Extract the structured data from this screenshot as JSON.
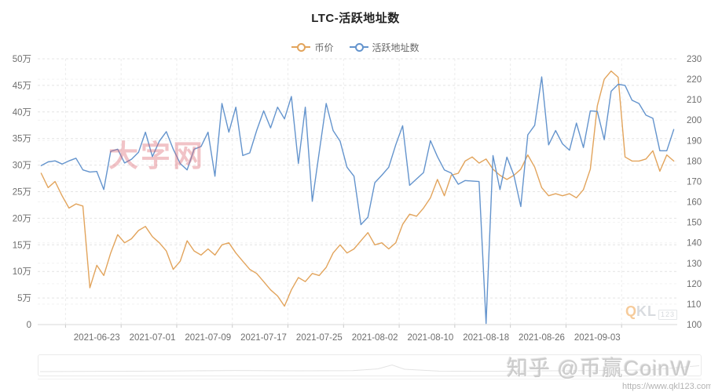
{
  "title": "LTC-活跃地址数",
  "legend": {
    "items": [
      {
        "label": "币价",
        "color": "#e2a45c"
      },
      {
        "label": "活跃地址数",
        "color": "#6494cd"
      }
    ]
  },
  "watermarks": {
    "center_text": "大字网",
    "logo_q": "Q",
    "logo_kl": "KL",
    "logo_num": "123",
    "bottom_text": "知乎 @币赢CoinW"
  },
  "source_url": "https://www.qkl123.com",
  "colors": {
    "price_line": "#e2a45c",
    "active_line": "#6494cd",
    "grid_major": "#e4e4e4",
    "grid_minor": "#f2f2f2",
    "grid_vertical": "#ececec",
    "axis_line": "#d8d8d8",
    "axis_text": "#6e6e6e"
  },
  "chart_data": {
    "type": "line",
    "title": "LTC-活跃地址数",
    "x_start": "2021-06-15",
    "x_interval": "daily",
    "x_labels": [
      "2021-06-23",
      "2021-07-01",
      "2021-07-09",
      "2021-07-17",
      "2021-07-25",
      "2021-08-02",
      "2021-08-10",
      "2021-08-18",
      "2021-08-26",
      "2021-09-03"
    ],
    "x_label_first_index": 8,
    "x_label_step": 8,
    "grid": "dashed",
    "legend_position": "top",
    "left_axis": {
      "min": 0,
      "max": 500000,
      "ticks": [
        "50万",
        "45万",
        "40万",
        "35万",
        "30万",
        "25万",
        "20万",
        "15万",
        "10万",
        "5万",
        "0"
      ]
    },
    "right_axis": {
      "min": 100,
      "max": 230,
      "ticks": [
        "230",
        "220",
        "210",
        "200",
        "190",
        "180",
        "170",
        "160",
        "150",
        "140",
        "130",
        "120",
        "110",
        "100"
      ]
    },
    "series": [
      {
        "name": "币价",
        "axis": "right",
        "color": "#e2a45c",
        "values": [
          174,
          167,
          170,
          163,
          157,
          159,
          158,
          118,
          129,
          124,
          135,
          144,
          140,
          142,
          146,
          148,
          143,
          140,
          136,
          127,
          131,
          141,
          136,
          134,
          137,
          134,
          139,
          140,
          135,
          131,
          127,
          125,
          121,
          117,
          114,
          109,
          117,
          123,
          121,
          125,
          124,
          128,
          135,
          139,
          135,
          137,
          141,
          145,
          139,
          140,
          137,
          140,
          149,
          154,
          153,
          157,
          162,
          171,
          163,
          173,
          174,
          180,
          182,
          179,
          181,
          176,
          173,
          171,
          173,
          176,
          183,
          177,
          167,
          163,
          164,
          163,
          164,
          162,
          166,
          176,
          207,
          220,
          224,
          221,
          182,
          180,
          180,
          181,
          185,
          175,
          183,
          180
        ]
      },
      {
        "name": "活跃地址数",
        "axis": "left",
        "color": "#6494cd",
        "values": [
          299000,
          306000,
          308000,
          302000,
          308000,
          313000,
          291000,
          287000,
          288000,
          254000,
          326000,
          330000,
          304000,
          311000,
          324000,
          362000,
          316000,
          345000,
          363000,
          330000,
          303000,
          291000,
          330000,
          335000,
          362000,
          279000,
          416000,
          362000,
          409000,
          318000,
          323000,
          365000,
          402000,
          370000,
          409000,
          387000,
          429000,
          303000,
          409000,
          232000,
          324000,
          416000,
          365000,
          345000,
          296000,
          279000,
          188000,
          202000,
          267000,
          281000,
          296000,
          338000,
          374000,
          262000,
          274000,
          286000,
          346000,
          316000,
          291000,
          285000,
          264000,
          271000,
          270000,
          269000,
          2000,
          318000,
          254000,
          315000,
          281000,
          222000,
          357000,
          375000,
          466000,
          338000,
          365000,
          340000,
          328000,
          379000,
          333000,
          402000,
          401000,
          348000,
          439000,
          452000,
          450000,
          422000,
          416000,
          394000,
          388000,
          327000,
          327000,
          367000
        ]
      }
    ]
  }
}
